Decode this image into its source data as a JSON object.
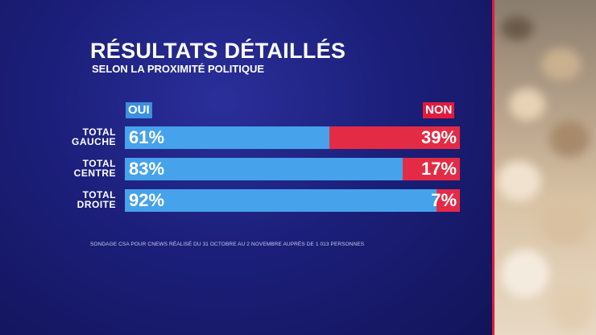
{
  "title": "RÉSULTATS DÉTAILLÉS",
  "subtitle": "SELON LA PROXIMITÉ POLITIQUE",
  "legend": {
    "yes": "OUI",
    "no": "NON"
  },
  "colors": {
    "yes": "#46a2ea",
    "no": "#e42b45",
    "background": "#1c1f7a"
  },
  "source": "SONDAGE CSA POUR CNEWS RÉALISÉ DU 31 OCTOBRE AU 2 NOVEMBRE AUPRÈS DE 1 013 PERSONNES",
  "chart_data": {
    "type": "bar",
    "stacked": true,
    "orientation": "horizontal",
    "categories": [
      [
        "TOTAL",
        "GAUCHE"
      ],
      [
        "TOTAL",
        "CENTRE"
      ],
      [
        "TOTAL",
        "DROITE"
      ]
    ],
    "series": [
      {
        "name": "OUI",
        "values": [
          61,
          83,
          92
        ],
        "labels": [
          "61%",
          "83%",
          "92%"
        ]
      },
      {
        "name": "NON",
        "values": [
          39,
          17,
          7
        ],
        "labels": [
          "39%",
          "17%",
          "7%"
        ]
      }
    ],
    "unit": "%"
  }
}
